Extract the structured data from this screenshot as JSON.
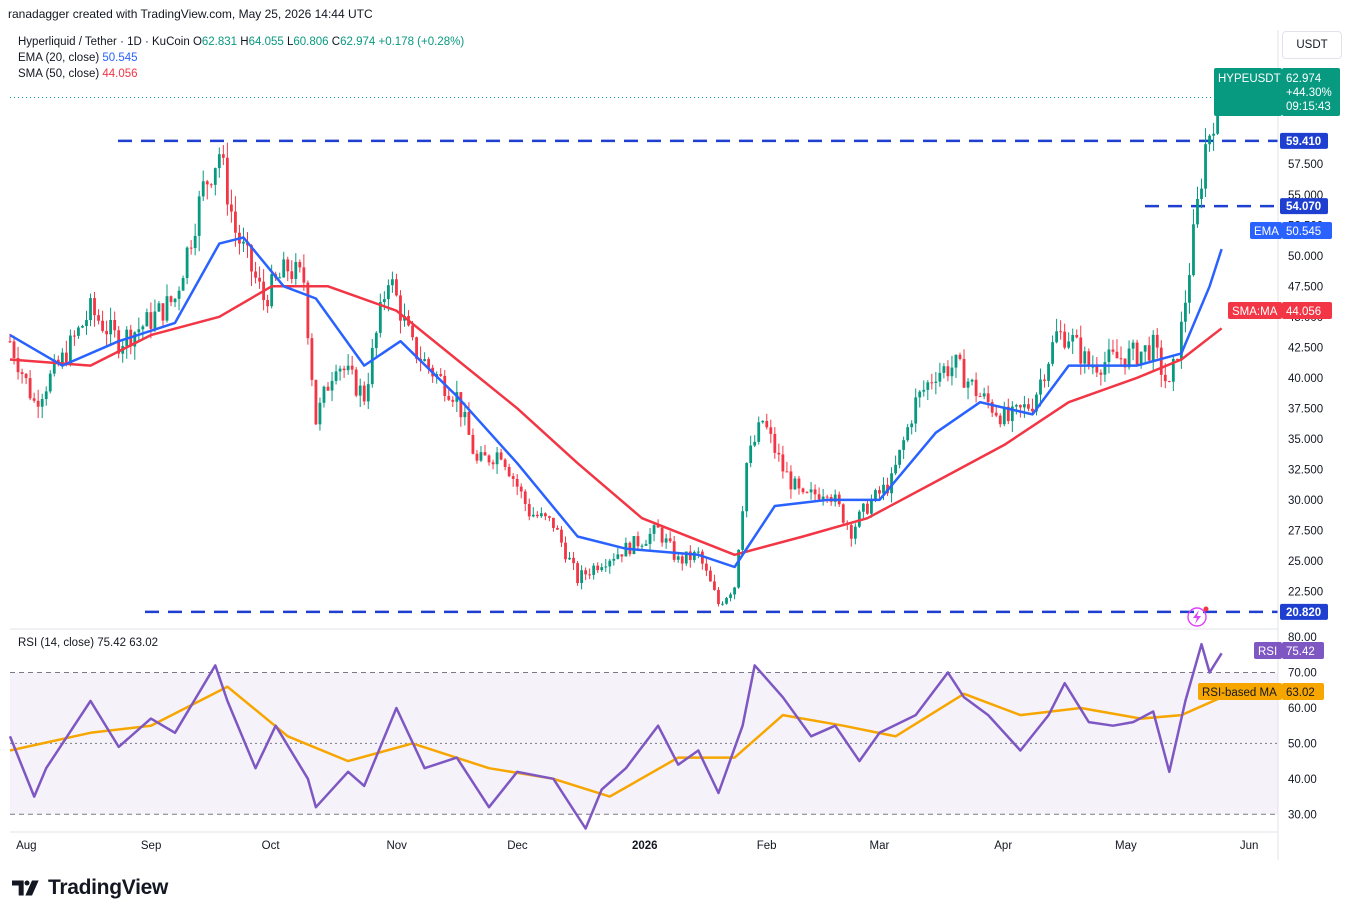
{
  "credit": "ranadagger created with TradingView.com, May 25, 2026 14:44 UTC",
  "legend": {
    "symbol": "Hyperliquid / Tether · 1D · KuCoin",
    "o_label": "O",
    "o": "62.831",
    "h_label": "H",
    "h": "64.055",
    "l_label": "L",
    "l": "60.806",
    "c_label": "C",
    "c": "62.974",
    "chg": "+0.178 (+0.28%)",
    "ema_label": "EMA (20, close)",
    "ema": "50.545",
    "sma_label": "SMA (50, close)",
    "sma": "44.056"
  },
  "rsi_legend": {
    "label": "RSI (14, close)",
    "rsi": "75.42",
    "rsima": "63.02"
  },
  "currency_button": "USDT",
  "brand": "TradingView",
  "tags": {
    "symbol": "HYPEUSDT",
    "price": "62.974",
    "pct": "+44.30%",
    "countdown": "09:15:43",
    "ema_label": "EMA",
    "ema_value": "50.545",
    "sma_label": "SMA:MA",
    "sma_value": "44.056",
    "rsi_label": "RSI",
    "rsi_value": "75.42",
    "rsima_label": "RSI-based MA",
    "rsima_value": "63.02"
  },
  "colors": {
    "up": "#089981",
    "down": "#f23645",
    "ema": "#2962ff",
    "sma": "#f23645",
    "rsi": "#7e57c2",
    "rsima": "#f7a600",
    "level": "#1e3fd0"
  },
  "chart_data": [
    {
      "type": "candlestick",
      "title": "Hyperliquid / Tether · 1D · KuCoin",
      "x_range": [
        "2025-07-28",
        "2026-06-08"
      ],
      "y_range": [
        19.5,
        68.5
      ],
      "y_ticks": [
        "20.820",
        "22.500",
        "25.000",
        "27.500",
        "30.000",
        "32.500",
        "35.000",
        "37.500",
        "40.000",
        "42.500",
        "45.000",
        "47.500",
        "50.000",
        "52.500",
        "55.000",
        "57.500",
        "59.410",
        "62.974"
      ],
      "x_ticks": [
        "Aug",
        "Sep",
        "Oct",
        "Nov",
        "Dec",
        "2026",
        "Feb",
        "Mar",
        "Apr",
        "May",
        "Jun"
      ],
      "horizontal_levels": [
        59.41,
        54.07,
        20.82
      ],
      "price_path_close": [
        [
          "2025-07-28",
          43.0
        ],
        [
          "2025-08-03",
          38.0
        ],
        [
          "2025-08-10",
          41.5
        ],
        [
          "2025-08-17",
          45.5
        ],
        [
          "2025-08-24",
          43.0
        ],
        [
          "2025-08-31",
          44.5
        ],
        [
          "2025-09-07",
          46.5
        ],
        [
          "2025-09-14",
          55.5
        ],
        [
          "2025-09-18",
          58.5
        ],
        [
          "2025-09-22",
          52.0
        ],
        [
          "2025-09-29",
          46.5
        ],
        [
          "2025-10-05",
          49.0
        ],
        [
          "2025-10-09",
          48.0
        ],
        [
          "2025-10-12",
          36.5
        ],
        [
          "2025-10-17",
          41.5
        ],
        [
          "2025-10-24",
          38.5
        ],
        [
          "2025-10-30",
          48.5
        ],
        [
          "2025-11-05",
          42.5
        ],
        [
          "2025-11-10",
          40.5
        ],
        [
          "2025-11-16",
          38.5
        ],
        [
          "2025-11-21",
          33.0
        ],
        [
          "2025-11-27",
          34.0
        ],
        [
          "2025-12-04",
          29.0
        ],
        [
          "2025-12-10",
          28.0
        ],
        [
          "2025-12-16",
          23.5
        ],
        [
          "2025-12-22",
          25.0
        ],
        [
          "2025-12-28",
          26.0
        ],
        [
          "2026-01-05",
          27.5
        ],
        [
          "2026-01-10",
          25.0
        ],
        [
          "2026-01-15",
          25.5
        ],
        [
          "2026-01-20",
          21.5
        ],
        [
          "2026-01-24",
          23.0
        ],
        [
          "2026-01-27",
          33.0
        ],
        [
          "2026-01-31",
          36.5
        ],
        [
          "2026-02-05",
          32.5
        ],
        [
          "2026-02-10",
          30.0
        ],
        [
          "2026-02-16",
          31.0
        ],
        [
          "2026-02-22",
          27.5
        ],
        [
          "2026-02-26",
          29.5
        ],
        [
          "2026-03-04",
          31.5
        ],
        [
          "2026-03-10",
          38.0
        ],
        [
          "2026-03-15",
          40.5
        ],
        [
          "2026-03-20",
          41.0
        ],
        [
          "2026-03-26",
          38.5
        ],
        [
          "2026-04-02",
          36.5
        ],
        [
          "2026-04-08",
          38.0
        ],
        [
          "2026-04-14",
          43.5
        ],
        [
          "2026-04-17",
          43.5
        ],
        [
          "2026-04-22",
          41.0
        ],
        [
          "2026-04-28",
          41.5
        ],
        [
          "2026-05-04",
          42.0
        ],
        [
          "2026-05-08",
          42.5
        ],
        [
          "2026-05-12",
          39.0
        ],
        [
          "2026-05-15",
          44.0
        ],
        [
          "2026-05-19",
          54.0
        ],
        [
          "2026-05-21",
          59.0
        ],
        [
          "2026-05-23",
          61.5
        ],
        [
          "2026-05-25",
          62.974
        ]
      ],
      "series": [
        {
          "name": "EMA (20, close)",
          "values": [
            [
              "2025-07-28",
              43.5
            ],
            [
              "2025-08-10",
              41.0
            ],
            [
              "2025-08-24",
              43.0
            ],
            [
              "2025-09-07",
              44.5
            ],
            [
              "2025-09-18",
              51.0
            ],
            [
              "2025-09-24",
              51.5
            ],
            [
              "2025-10-04",
              47.5
            ],
            [
              "2025-10-12",
              46.5
            ],
            [
              "2025-10-24",
              41.0
            ],
            [
              "2025-11-02",
              43.0
            ],
            [
              "2025-11-16",
              38.5
            ],
            [
              "2025-12-01",
              33.0
            ],
            [
              "2025-12-16",
              27.0
            ],
            [
              "2025-12-28",
              26.0
            ],
            [
              "2026-01-15",
              25.5
            ],
            [
              "2026-01-24",
              24.5
            ],
            [
              "2026-02-03",
              29.5
            ],
            [
              "2026-02-16",
              30.0
            ],
            [
              "2026-03-01",
              30.0
            ],
            [
              "2026-03-15",
              35.5
            ],
            [
              "2026-03-26",
              38.0
            ],
            [
              "2026-04-08",
              37.0
            ],
            [
              "2026-04-17",
              41.0
            ],
            [
              "2026-05-04",
              41.0
            ],
            [
              "2026-05-15",
              42.0
            ],
            [
              "2026-05-22",
              47.5
            ],
            [
              "2026-05-25",
              50.545
            ]
          ]
        },
        {
          "name": "SMA (50, close)",
          "values": [
            [
              "2025-07-28",
              41.5
            ],
            [
              "2025-08-17",
              41.0
            ],
            [
              "2025-09-01",
              43.5
            ],
            [
              "2025-09-18",
              45.0
            ],
            [
              "2025-10-01",
              47.5
            ],
            [
              "2025-10-15",
              47.5
            ],
            [
              "2025-11-01",
              45.5
            ],
            [
              "2025-11-16",
              41.5
            ],
            [
              "2025-12-01",
              37.5
            ],
            [
              "2025-12-16",
              33.0
            ],
            [
              "2026-01-01",
              28.5
            ],
            [
              "2026-01-24",
              25.5
            ],
            [
              "2026-02-10",
              27.0
            ],
            [
              "2026-02-26",
              28.5
            ],
            [
              "2026-03-15",
              31.5
            ],
            [
              "2026-04-01",
              34.5
            ],
            [
              "2026-04-17",
              38.0
            ],
            [
              "2026-05-04",
              40.0
            ],
            [
              "2026-05-15",
              41.5
            ],
            [
              "2026-05-25",
              44.056
            ]
          ]
        }
      ]
    },
    {
      "type": "line",
      "title": "RSI (14, close)",
      "y_range": [
        25,
        82
      ],
      "y_ticks": [
        30,
        40,
        50,
        60,
        70,
        80
      ],
      "bands": [
        30,
        50,
        70
      ],
      "series": [
        {
          "name": "RSI",
          "values": [
            [
              "2025-07-28",
              52
            ],
            [
              "2025-08-03",
              35
            ],
            [
              "2025-08-06",
              43
            ],
            [
              "2025-08-17",
              62
            ],
            [
              "2025-08-24",
              49
            ],
            [
              "2025-09-01",
              57
            ],
            [
              "2025-09-07",
              53
            ],
            [
              "2025-09-17",
              72
            ],
            [
              "2025-09-20",
              62
            ],
            [
              "2025-09-27",
              43
            ],
            [
              "2025-10-02",
              55
            ],
            [
              "2025-10-10",
              40
            ],
            [
              "2025-10-12",
              32
            ],
            [
              "2025-10-20",
              42
            ],
            [
              "2025-10-24",
              38
            ],
            [
              "2025-11-01",
              60
            ],
            [
              "2025-11-08",
              43
            ],
            [
              "2025-11-16",
              46
            ],
            [
              "2025-11-24",
              32
            ],
            [
              "2025-12-01",
              42
            ],
            [
              "2025-12-10",
              40
            ],
            [
              "2025-12-18",
              26
            ],
            [
              "2025-12-22",
              37
            ],
            [
              "2025-12-28",
              43
            ],
            [
              "2026-01-05",
              55
            ],
            [
              "2026-01-10",
              44
            ],
            [
              "2026-01-15",
              48
            ],
            [
              "2026-01-20",
              36
            ],
            [
              "2026-01-26",
              55
            ],
            [
              "2026-01-29",
              72
            ],
            [
              "2026-02-05",
              63
            ],
            [
              "2026-02-12",
              52
            ],
            [
              "2026-02-18",
              55
            ],
            [
              "2026-02-24",
              45
            ],
            [
              "2026-03-01",
              53
            ],
            [
              "2026-03-10",
              58
            ],
            [
              "2026-03-18",
              70
            ],
            [
              "2026-03-22",
              63
            ],
            [
              "2026-03-28",
              58
            ],
            [
              "2026-04-05",
              48
            ],
            [
              "2026-04-12",
              58
            ],
            [
              "2026-04-16",
              67
            ],
            [
              "2026-04-22",
              56
            ],
            [
              "2026-04-28",
              55
            ],
            [
              "2026-05-03",
              56
            ],
            [
              "2026-05-08",
              59
            ],
            [
              "2026-05-12",
              42
            ],
            [
              "2026-05-16",
              62
            ],
            [
              "2026-05-20",
              78
            ],
            [
              "2026-05-22",
              70
            ],
            [
              "2026-05-25",
              75.42
            ]
          ]
        },
        {
          "name": "RSI-based MA",
          "values": [
            [
              "2025-07-28",
              48
            ],
            [
              "2025-08-17",
              53
            ],
            [
              "2025-09-01",
              55
            ],
            [
              "2025-09-20",
              66
            ],
            [
              "2025-10-05",
              52
            ],
            [
              "2025-10-20",
              45
            ],
            [
              "2025-11-05",
              50
            ],
            [
              "2025-11-24",
              43
            ],
            [
              "2025-12-10",
              40
            ],
            [
              "2025-12-24",
              35
            ],
            [
              "2026-01-10",
              46
            ],
            [
              "2026-01-24",
              46
            ],
            [
              "2026-02-05",
              58
            ],
            [
              "2026-02-20",
              55
            ],
            [
              "2026-03-05",
              52
            ],
            [
              "2026-03-22",
              64
            ],
            [
              "2026-04-05",
              58
            ],
            [
              "2026-04-20",
              60
            ],
            [
              "2026-05-05",
              57
            ],
            [
              "2026-05-15",
              58
            ],
            [
              "2026-05-25",
              63.02
            ]
          ]
        }
      ]
    }
  ]
}
